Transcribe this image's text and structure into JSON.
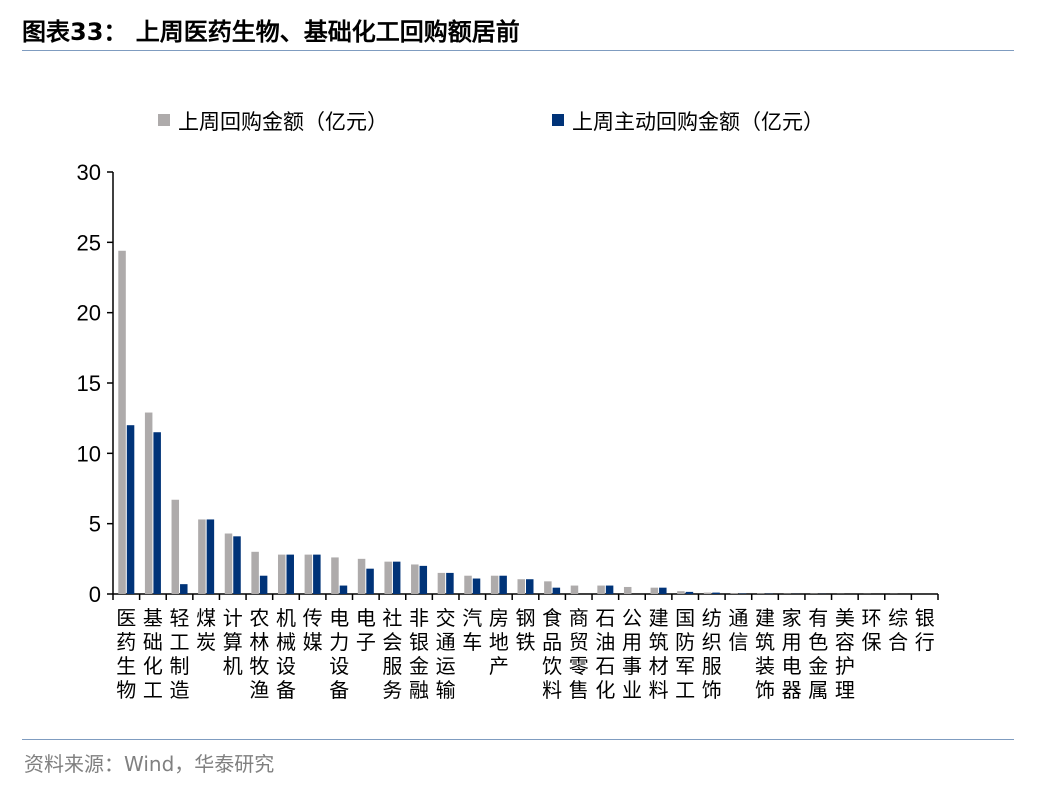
{
  "title": "图表33： 上周医药生物、基础化工回购额居前",
  "source": "资料来源：Wind，华泰研究",
  "chart_data": {
    "type": "bar",
    "ylim": [
      0,
      30
    ],
    "yticks": [
      0,
      5,
      10,
      15,
      20,
      25,
      30
    ],
    "legend_position": "top",
    "grid": false,
    "categories": [
      "医药生物",
      "基础化工",
      "轻工制造",
      "煤炭",
      "计算机",
      "农林牧渔",
      "机械设备",
      "传媒",
      "电力设备",
      "电子",
      "社会服务",
      "非银金融",
      "交通运输",
      "汽车",
      "房地产",
      "钢铁",
      "食品饮料",
      "商贸零售",
      "石油石化",
      "公用事业",
      "建筑材料",
      "国防军工",
      "纺织服饰",
      "通信",
      "建筑装饰",
      "家用电器",
      "有色金属",
      "美容护理",
      "环保",
      "综合",
      "银行"
    ],
    "series": [
      {
        "name": "上周回购金额（亿元）",
        "color": "#aeabab",
        "values": [
          24.4,
          12.9,
          6.7,
          5.3,
          4.3,
          3.0,
          2.8,
          2.8,
          2.6,
          2.5,
          2.3,
          2.1,
          1.5,
          1.3,
          1.3,
          1.05,
          0.9,
          0.6,
          0.6,
          0.5,
          0.45,
          0.2,
          0.1,
          0.05,
          0.03,
          0.02,
          0.02,
          0.01,
          0.01,
          0.01,
          0
        ]
      },
      {
        "name": "上周主动回购金额（亿元）",
        "color": "#003378",
        "values": [
          12.0,
          11.5,
          0.7,
          5.3,
          4.1,
          1.3,
          2.8,
          2.8,
          0.6,
          1.8,
          2.3,
          2.0,
          1.5,
          1.1,
          1.3,
          1.05,
          0.45,
          0,
          0.6,
          0,
          0.45,
          0.15,
          0.1,
          0.03,
          0.02,
          0.01,
          0.01,
          0,
          0,
          0,
          0
        ]
      }
    ]
  }
}
